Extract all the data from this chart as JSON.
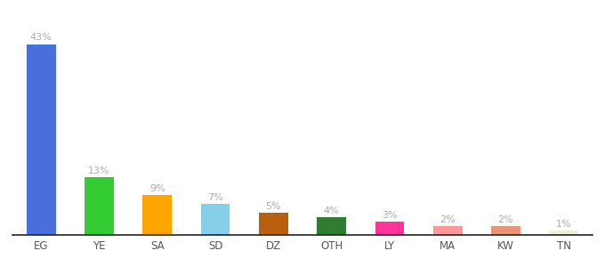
{
  "categories": [
    "EG",
    "YE",
    "SA",
    "SD",
    "DZ",
    "OTH",
    "LY",
    "MA",
    "KW",
    "TN"
  ],
  "values": [
    43,
    13,
    9,
    7,
    5,
    4,
    3,
    2,
    2,
    1
  ],
  "bar_colors": [
    "#4a6edb",
    "#33cc33",
    "#ffa500",
    "#87ceeb",
    "#b8600e",
    "#2e7d32",
    "#ff3399",
    "#ff9999",
    "#e8967a",
    "#f0edd8"
  ],
  "labels": [
    "43%",
    "13%",
    "9%",
    "7%",
    "5%",
    "4%",
    "3%",
    "2%",
    "2%",
    "1%"
  ],
  "background_color": "#ffffff",
  "label_fontsize": 8.0,
  "tick_fontsize": 8.5,
  "label_color": "#aaaaaa",
  "tick_color": "#555555",
  "ylim": [
    0,
    50
  ],
  "bar_width": 0.5
}
